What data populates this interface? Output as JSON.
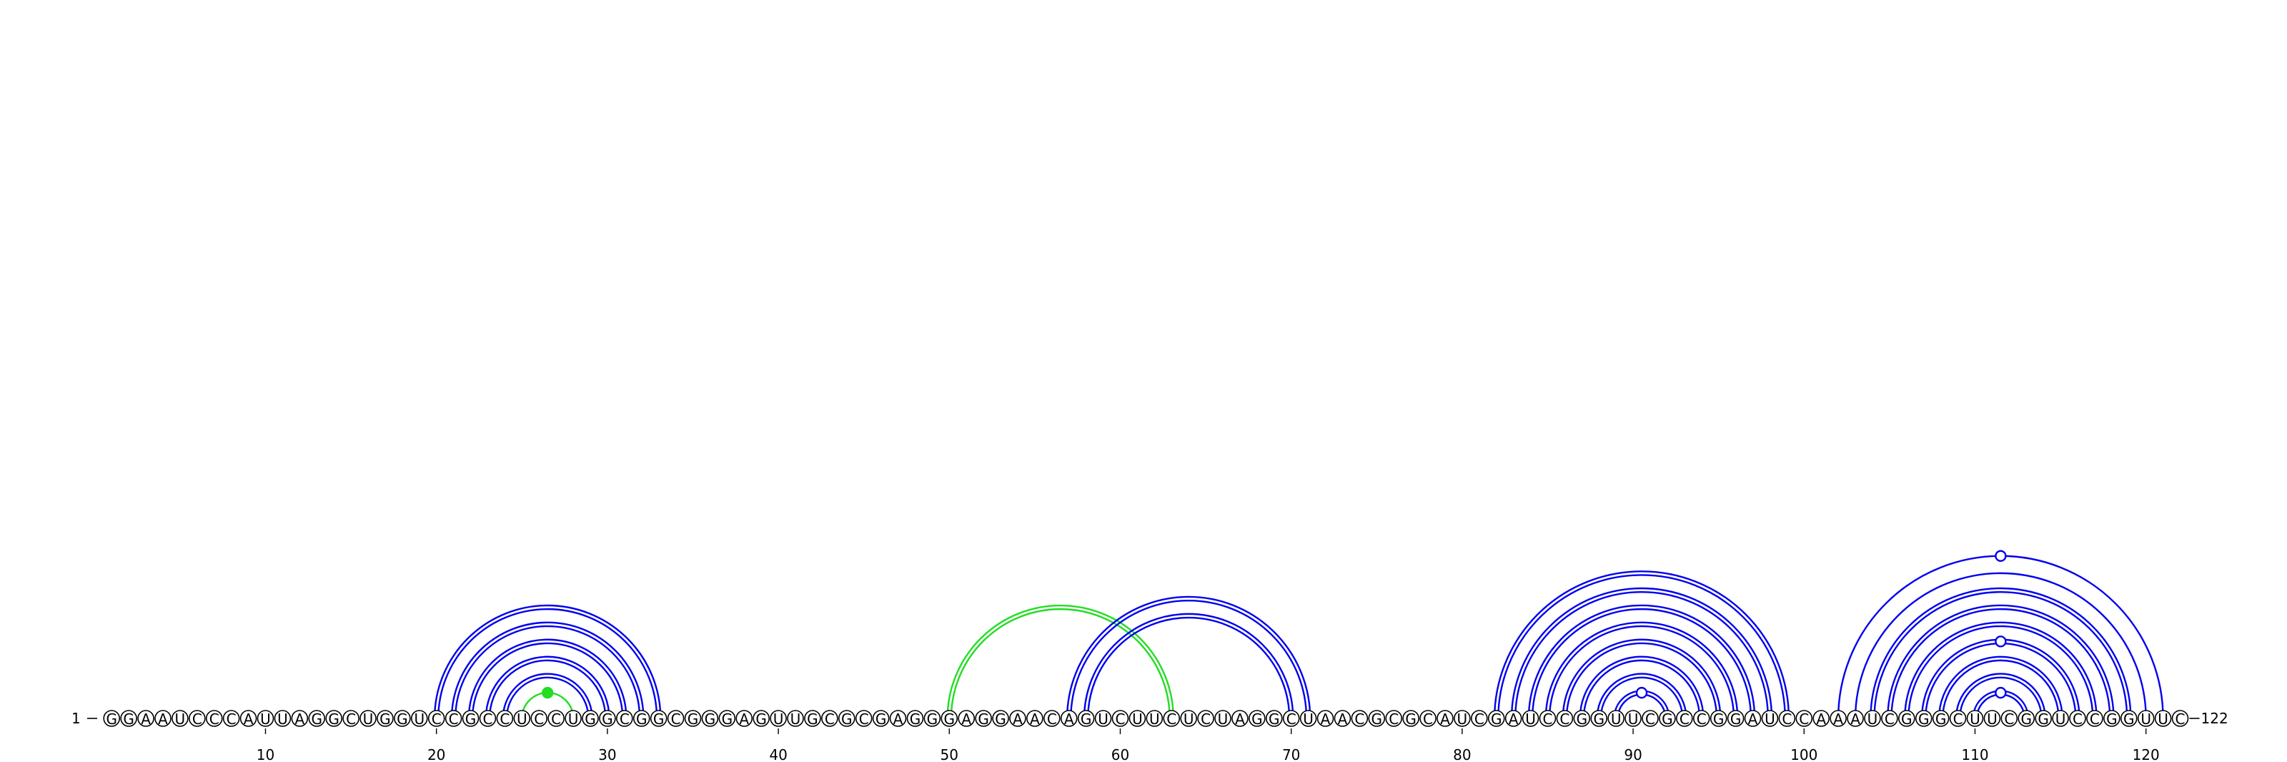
{
  "diagram": {
    "sequence": "GGAAUCCCAUUAGGCUGGUCCGCCUCCUGGCGGCGGGAGUUGCGCGAGGGAGGAACAGUCUUCUCUAGGCUAACGCGCAUCGAUCCGGUUCGCCGGAUCCAAAUCGGGCUUCGGUCCGGUUC",
    "length": 122,
    "start_label": "1",
    "end_label": "122",
    "ticks": [
      "10",
      "20",
      "30",
      "40",
      "50",
      "60",
      "70",
      "80",
      "90",
      "100",
      "110",
      "120"
    ],
    "colors": {
      "pair": "#0000ee",
      "pseudoknot": "#22dd22"
    },
    "arcs": [
      {
        "i": 20,
        "j": 33,
        "style": "double",
        "color": "pair"
      },
      {
        "i": 21,
        "j": 32,
        "style": "double",
        "color": "pair"
      },
      {
        "i": 22,
        "j": 31,
        "style": "double",
        "color": "pair"
      },
      {
        "i": 23,
        "j": 30,
        "style": "double",
        "color": "pair"
      },
      {
        "i": 24,
        "j": 29,
        "style": "double",
        "color": "pair"
      },
      {
        "i": 25,
        "j": 28,
        "style": "single",
        "color": "pseudoknot"
      },
      {
        "i": 50,
        "j": 63,
        "style": "double",
        "color": "pseudoknot"
      },
      {
        "i": 57,
        "j": 71,
        "style": "double",
        "color": "pair"
      },
      {
        "i": 58,
        "j": 70,
        "style": "double",
        "color": "pair"
      },
      {
        "i": 82,
        "j": 99,
        "style": "double",
        "color": "pair"
      },
      {
        "i": 83,
        "j": 98,
        "style": "double",
        "color": "pair"
      },
      {
        "i": 84,
        "j": 97,
        "style": "double",
        "color": "pair"
      },
      {
        "i": 85,
        "j": 96,
        "style": "double",
        "color": "pair"
      },
      {
        "i": 86,
        "j": 95,
        "style": "double",
        "color": "pair"
      },
      {
        "i": 87,
        "j": 94,
        "style": "double",
        "color": "pair"
      },
      {
        "i": 88,
        "j": 93,
        "style": "double",
        "color": "pair"
      },
      {
        "i": 89,
        "j": 92,
        "style": "double",
        "color": "pair"
      },
      {
        "i": 102,
        "j": 121,
        "style": "single",
        "color": "pair"
      },
      {
        "i": 103,
        "j": 120,
        "style": "single",
        "color": "pair"
      },
      {
        "i": 104,
        "j": 119,
        "style": "double",
        "color": "pair"
      },
      {
        "i": 105,
        "j": 118,
        "style": "double",
        "color": "pair"
      },
      {
        "i": 106,
        "j": 117,
        "style": "double",
        "color": "pair"
      },
      {
        "i": 107,
        "j": 116,
        "style": "double",
        "color": "pair"
      },
      {
        "i": 108,
        "j": 115,
        "style": "double",
        "color": "pair"
      },
      {
        "i": 109,
        "j": 114,
        "style": "double",
        "color": "pair"
      },
      {
        "i": 110,
        "j": 113,
        "style": "double",
        "color": "pair"
      }
    ],
    "markers": [
      {
        "i": 25,
        "j": 28,
        "type": "filled",
        "color": "pseudoknot"
      },
      {
        "i": 89,
        "j": 92,
        "type": "open",
        "color": "pair"
      },
      {
        "i": 102,
        "j": 121,
        "type": "open",
        "color": "pair"
      },
      {
        "i": 107,
        "j": 116,
        "type": "open",
        "color": "pair"
      },
      {
        "i": 110,
        "j": 113,
        "type": "open",
        "color": "pair"
      }
    ]
  }
}
